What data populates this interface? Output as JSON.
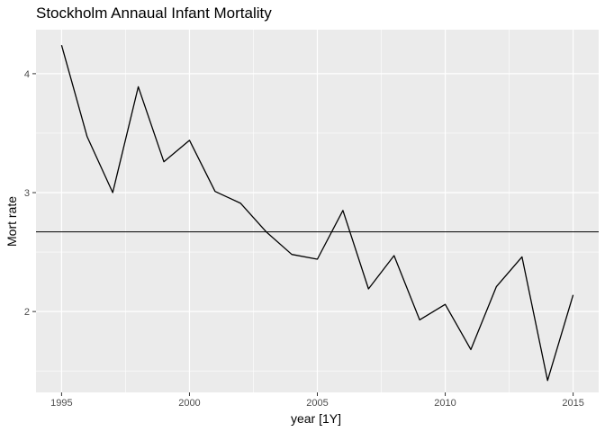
{
  "chart_data": {
    "type": "line",
    "title": "Stockholm Annaual Infant Mortality",
    "xlabel": "year [1Y]",
    "ylabel": "Mort rate",
    "xlim": [
      1994.0,
      2016.0
    ],
    "ylim": [
      1.32,
      4.37
    ],
    "x_ticks": [
      1995,
      2000,
      2005,
      2010,
      2015
    ],
    "y_ticks": [
      2,
      3,
      4
    ],
    "grid": true,
    "panel_background": "#ebebeb",
    "grid_major_color": "#ffffff",
    "line_color": "#000000",
    "series": [
      {
        "x": [
          1995,
          1996,
          1997,
          1998,
          1999,
          2000,
          2001,
          2002,
          2003,
          2004,
          2005,
          2006,
          2007,
          2008,
          2009,
          2010,
          2011,
          2012,
          2013,
          2014,
          2015
        ],
        "values": [
          4.24,
          3.47,
          3.0,
          3.89,
          3.26,
          3.44,
          3.01,
          2.91,
          2.67,
          2.48,
          2.44,
          2.85,
          2.19,
          2.47,
          1.93,
          2.06,
          1.68,
          2.21,
          2.46,
          1.42,
          2.14
        ]
      }
    ],
    "hline": 2.67
  }
}
